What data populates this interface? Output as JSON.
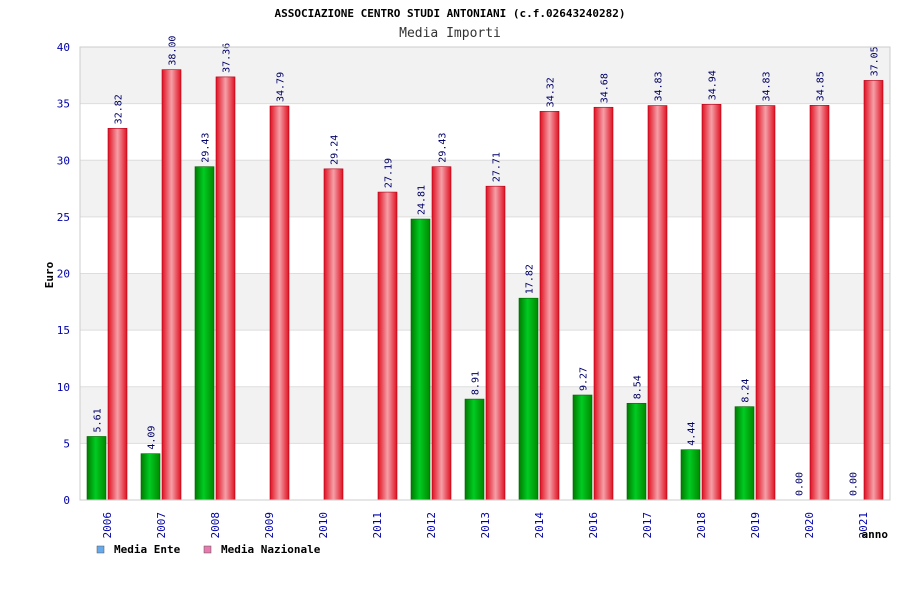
{
  "chart_data": {
    "type": "bar",
    "title": "ASSOCIAZIONE CENTRO STUDI ANTONIANI (c.f.02643240282)",
    "subtitle": "Media Importi",
    "xlabel": "anno",
    "ylabel": "Euro",
    "ylim": [
      0,
      40
    ],
    "yticks": [
      "0",
      "5",
      "10",
      "15",
      "20",
      "25",
      "30",
      "35",
      "40"
    ],
    "grid": true,
    "legend_position": "bottom-left",
    "categories": [
      "2006",
      "2007",
      "2008",
      "2009",
      "2010",
      "2011",
      "2012",
      "2013",
      "2014",
      "2016",
      "2017",
      "2018",
      "2019",
      "2020",
      "2021"
    ],
    "series": [
      {
        "name": "Media Ente",
        "color": "#00aa00",
        "legend_color": "#66aaee",
        "values": [
          5.61,
          4.09,
          29.43,
          null,
          null,
          null,
          24.81,
          8.91,
          17.82,
          9.27,
          8.54,
          4.44,
          8.24,
          0.0,
          0.0
        ],
        "labels": [
          "5.61",
          "4.09",
          "29.43",
          "",
          "",
          "",
          "24.81",
          "8.91",
          "17.82",
          "9.27",
          "8.54",
          "4.44",
          "8.24",
          "0.00",
          "0.00"
        ]
      },
      {
        "name": "Media Nazionale",
        "color": "#ee1c2e",
        "legend_color": "#e87ab0",
        "values": [
          32.82,
          38.0,
          37.36,
          34.79,
          29.24,
          27.19,
          29.43,
          27.71,
          34.32,
          34.68,
          34.83,
          34.94,
          34.83,
          34.85,
          37.05
        ],
        "labels": [
          "32.82",
          "38.00",
          "37.36",
          "34.79",
          "29.24",
          "27.19",
          "29.43",
          "27.71",
          "34.32",
          "34.68",
          "34.83",
          "34.94",
          "34.83",
          "34.85",
          "37.05"
        ]
      }
    ]
  }
}
